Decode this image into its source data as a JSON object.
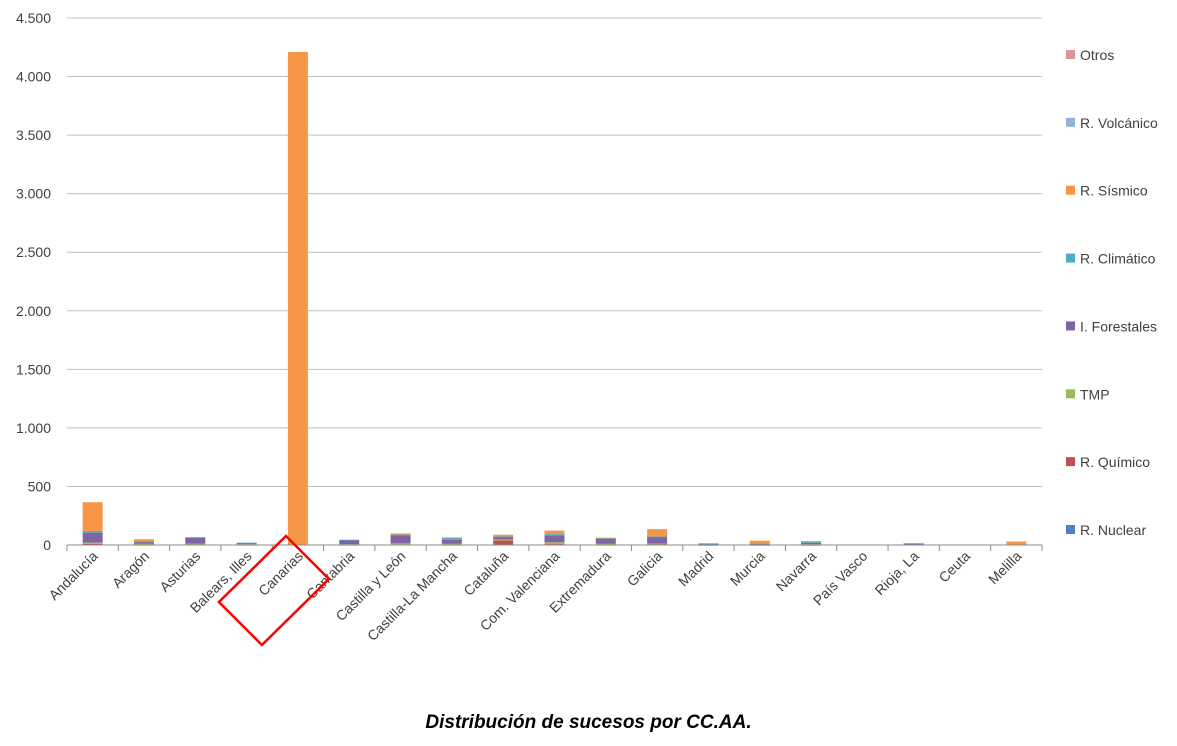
{
  "caption": "Distribución de sucesos por CC.AA.",
  "chart_data": {
    "type": "bar",
    "stacked": true,
    "categories": [
      "Andalucía",
      "Aragón",
      "Asturias",
      "Balears, Illes",
      "Canarias",
      "Cantabria",
      "Castilla y León",
      "Castilla-La Mancha",
      "Cataluña",
      "Com. Valenciana",
      "Extremadura",
      "Galicia",
      "Madrid",
      "Murcia",
      "Navarra",
      "País Vasco",
      "Rioja, La",
      "Ceuta",
      "Melilla"
    ],
    "ylim": [
      0,
      4500
    ],
    "yticks": [
      0,
      500,
      1000,
      1500,
      2000,
      2500,
      3000,
      3500,
      4000,
      4500
    ],
    "ytick_labels": [
      "0",
      "500",
      "1.000",
      "1.500",
      "2.000",
      "2.500",
      "3.000",
      "3.500",
      "4.000",
      "4.500"
    ],
    "grid": true,
    "legend_position": "right",
    "highlighted_category": "Canarias",
    "highlight_color": "#ff0000",
    "series": [
      {
        "name": "R. Nuclear",
        "color": "#4f81bd",
        "values": [
          5,
          2,
          3,
          2,
          0,
          2,
          3,
          2,
          3,
          3,
          2,
          3,
          1,
          1,
          1,
          0,
          8,
          0,
          0
        ]
      },
      {
        "name": "R. Químico",
        "color": "#c0504d",
        "values": [
          5,
          3,
          3,
          2,
          0,
          2,
          3,
          3,
          35,
          5,
          3,
          5,
          3,
          3,
          3,
          0,
          0,
          0,
          0
        ]
      },
      {
        "name": "TMP",
        "color": "#9bbb59",
        "values": [
          10,
          5,
          5,
          3,
          0,
          3,
          8,
          5,
          10,
          15,
          5,
          5,
          2,
          3,
          3,
          0,
          0,
          0,
          0
        ]
      },
      {
        "name": "I. Forestales",
        "color": "#8064a2",
        "values": [
          85,
          15,
          50,
          10,
          0,
          35,
          70,
          35,
          20,
          60,
          45,
          55,
          5,
          5,
          15,
          0,
          5,
          0,
          0
        ]
      },
      {
        "name": "R. Climático",
        "color": "#4bacc6",
        "values": [
          15,
          5,
          5,
          3,
          0,
          3,
          5,
          15,
          5,
          10,
          3,
          5,
          2,
          3,
          2,
          0,
          2,
          0,
          0
        ]
      },
      {
        "name": "R. Sísmico",
        "color": "#f79646",
        "values": [
          245,
          20,
          2,
          0,
          4210,
          0,
          10,
          5,
          15,
          30,
          5,
          62,
          3,
          22,
          10,
          0,
          0,
          0,
          30
        ]
      },
      {
        "name": "R. Volcánico",
        "color": "#95b3d7",
        "values": [
          0,
          0,
          0,
          0,
          0,
          0,
          0,
          0,
          0,
          0,
          0,
          0,
          0,
          0,
          0,
          0,
          0,
          0,
          0
        ]
      },
      {
        "name": "Otros",
        "color": "#d99694",
        "values": [
          0,
          0,
          0,
          0,
          0,
          0,
          0,
          0,
          0,
          0,
          0,
          0,
          0,
          0,
          0,
          0,
          0,
          0,
          0
        ]
      }
    ]
  }
}
